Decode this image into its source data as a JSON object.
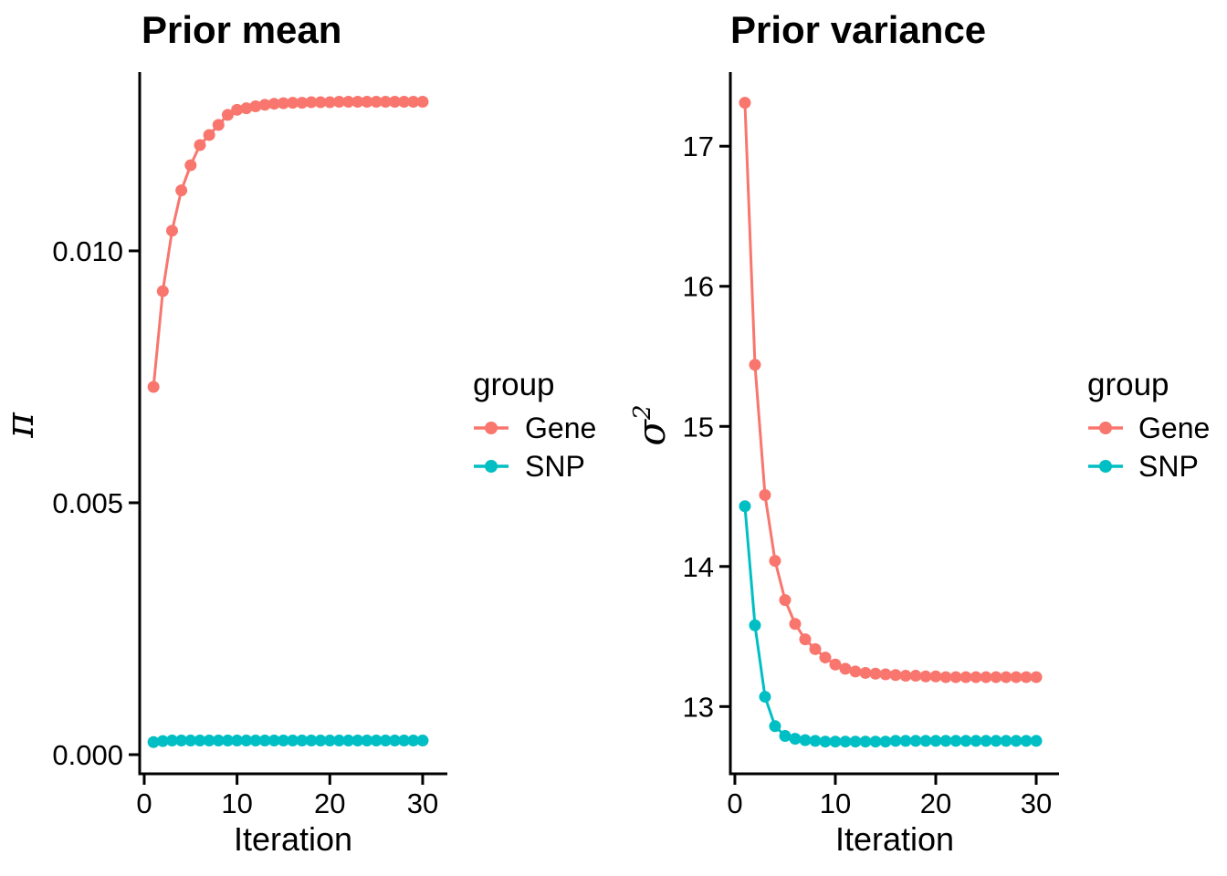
{
  "styles": {
    "background": "#FFFFFF",
    "axis_color": "#000000",
    "text_color": "#000000",
    "gene_color": "#F8766D",
    "snp_color": "#00BFC4"
  },
  "chart_data": [
    {
      "type": "line",
      "title": "Prior mean",
      "xlabel": "Iteration",
      "ylabel": "π",
      "ylabel_superscript": "",
      "x": [
        1,
        2,
        3,
        4,
        5,
        6,
        7,
        8,
        9,
        10,
        11,
        12,
        13,
        14,
        15,
        16,
        17,
        18,
        19,
        20,
        21,
        22,
        23,
        24,
        25,
        26,
        27,
        28,
        29,
        30
      ],
      "series": [
        {
          "name": "Gene",
          "color": "#F8766D",
          "values": [
            0.0073,
            0.0092,
            0.0104,
            0.0112,
            0.0117,
            0.0121,
            0.0123,
            0.0125,
            0.0127,
            0.0128,
            0.01283,
            0.01287,
            0.0129,
            0.01292,
            0.01293,
            0.01294,
            0.01294,
            0.01295,
            0.01295,
            0.01295,
            0.01296,
            0.01296,
            0.01296,
            0.01296,
            0.01296,
            0.01296,
            0.01296,
            0.01296,
            0.01296,
            0.01296
          ]
        },
        {
          "name": "SNP",
          "color": "#00BFC4",
          "values": [
            0.00025,
            0.00027,
            0.00028,
            0.00028,
            0.00028,
            0.00028,
            0.00028,
            0.00028,
            0.00028,
            0.00028,
            0.00028,
            0.00028,
            0.00028,
            0.00028,
            0.00028,
            0.00028,
            0.00028,
            0.00028,
            0.00028,
            0.00028,
            0.00028,
            0.00028,
            0.00028,
            0.00028,
            0.00028,
            0.00028,
            0.00028,
            0.00028,
            0.00028,
            0.00028
          ]
        }
      ],
      "x_ticks": [
        0,
        10,
        20,
        30
      ],
      "x_tick_labels": [
        "0",
        "10",
        "20",
        "30"
      ],
      "y_ticks": [
        0,
        0.005,
        0.01
      ],
      "y_tick_labels": [
        "0.000",
        "0.005",
        "0.010"
      ],
      "xlim": [
        -0.49,
        32.66
      ],
      "ylim": [
        -0.00038,
        0.01344
      ],
      "grid": false,
      "legend": {
        "title": "group",
        "position": "right",
        "entries": [
          {
            "label": "Gene",
            "color": "#F8766D"
          },
          {
            "label": "SNP",
            "color": "#00BFC4"
          }
        ]
      }
    },
    {
      "type": "line",
      "title": "Prior variance",
      "xlabel": "Iteration",
      "ylabel": "σ",
      "ylabel_superscript": "2",
      "x": [
        1,
        2,
        3,
        4,
        5,
        6,
        7,
        8,
        9,
        10,
        11,
        12,
        13,
        14,
        15,
        16,
        17,
        18,
        19,
        20,
        21,
        22,
        23,
        24,
        25,
        26,
        27,
        28,
        29,
        30
      ],
      "series": [
        {
          "name": "Gene",
          "color": "#F8766D",
          "values": [
            17.31,
            15.44,
            14.51,
            14.04,
            13.76,
            13.59,
            13.48,
            13.41,
            13.35,
            13.3,
            13.27,
            13.25,
            13.24,
            13.235,
            13.23,
            13.225,
            13.22,
            13.22,
            13.215,
            13.215,
            13.21,
            13.21,
            13.21,
            13.21,
            13.21,
            13.21,
            13.21,
            13.21,
            13.21,
            13.21
          ]
        },
        {
          "name": "SNP",
          "color": "#00BFC4",
          "values": [
            14.43,
            13.58,
            13.07,
            12.86,
            12.79,
            12.77,
            12.76,
            12.755,
            12.75,
            12.75,
            12.75,
            12.75,
            12.75,
            12.75,
            12.75,
            12.755,
            12.755,
            12.755,
            12.755,
            12.755,
            12.755,
            12.755,
            12.755,
            12.755,
            12.755,
            12.755,
            12.755,
            12.755,
            12.755,
            12.755
          ]
        }
      ],
      "x_ticks": [
        0,
        10,
        20,
        30
      ],
      "x_tick_labels": [
        "0",
        "10",
        "20",
        "30"
      ],
      "y_ticks": [
        13,
        14,
        15,
        16,
        17
      ],
      "y_tick_labels": [
        "13",
        "14",
        "15",
        "16",
        "17"
      ],
      "xlim": [
        -0.45,
        32.27
      ],
      "ylim": [
        12.52,
        17.49
      ],
      "grid": false,
      "legend": {
        "title": "group",
        "position": "right",
        "entries": [
          {
            "label": "Gene",
            "color": "#F8766D"
          },
          {
            "label": "SNP",
            "color": "#00BFC4"
          }
        ]
      }
    }
  ]
}
